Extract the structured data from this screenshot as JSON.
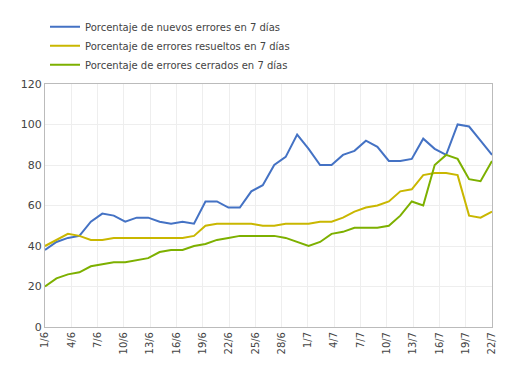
{
  "chart_data": {
    "type": "line",
    "x": [
      0,
      0.435897435897436,
      0.871794871794872,
      1.307692307692308,
      1.743589743589744,
      2.179487179487179,
      2.615384615384615,
      3.051282051282051,
      3.487179487179487,
      3.923076923076923,
      4.358974358974359,
      4.794871794871795,
      5.230769230769231,
      5.666666666666667,
      6.102564102564102,
      6.538461538461538,
      6.974358974358974,
      7.41025641025641,
      7.846153846153846,
      8.282051282051283,
      8.717948717948717,
      9.153846153846153,
      9.58974358974359,
      10.02564102564103,
      10.46153846153846,
      10.8974358974359,
      11.33333333333333,
      11.76923076923077,
      12.20512820512821,
      12.64102564102564,
      13.07692307692308,
      13.51282051282051,
      13.94871794871795,
      14.38461538461538,
      14.82051282051282,
      15.25641025641026,
      15.69230769230769,
      16.12820512820513,
      16.56410256410256,
      17
    ],
    "xlim": [
      0,
      17
    ],
    "xticks": [
      {
        "value": 0,
        "label": "1/6"
      },
      {
        "value": 1,
        "label": "4/6"
      },
      {
        "value": 2,
        "label": "7/6"
      },
      {
        "value": 3,
        "label": "10/6"
      },
      {
        "value": 4,
        "label": "13/6"
      },
      {
        "value": 5,
        "label": "16/6"
      },
      {
        "value": 6,
        "label": "19/6"
      },
      {
        "value": 7,
        "label": "22/6"
      },
      {
        "value": 8,
        "label": "25/6"
      },
      {
        "value": 9,
        "label": "28/6"
      },
      {
        "value": 10,
        "label": "1/7"
      },
      {
        "value": 11,
        "label": "4/7"
      },
      {
        "value": 12,
        "label": "7/7"
      },
      {
        "value": 13,
        "label": "10/7"
      },
      {
        "value": 14,
        "label": "13/7"
      },
      {
        "value": 15,
        "label": "16/7"
      },
      {
        "value": 16,
        "label": "19/7"
      },
      {
        "value": 17,
        "label": "22/7"
      }
    ],
    "ylim": [
      0,
      120
    ],
    "yticks": [
      0,
      20,
      40,
      60,
      80,
      100,
      120
    ],
    "grid": true,
    "legend": "top",
    "series": [
      {
        "name": "Porcentaje de nuevos errores en 7 días",
        "color": "#4472C4",
        "values": [
          38,
          42,
          44,
          45,
          52,
          56,
          55,
          52,
          54,
          54,
          52,
          51,
          52,
          51,
          62,
          62,
          59,
          59,
          67,
          70,
          80,
          84,
          95,
          88,
          80,
          80,
          85,
          87,
          92,
          89,
          82,
          82,
          83,
          93,
          88,
          85,
          100,
          99,
          92,
          85
        ]
      },
      {
        "name": "Porcentaje de errores resueltos en 7 días",
        "color": "#C9B700",
        "values": [
          40,
          43,
          46,
          45,
          43,
          43,
          44,
          44,
          44,
          44,
          44,
          44,
          44,
          45,
          50,
          51,
          51,
          51,
          51,
          50,
          50,
          51,
          51,
          51,
          52,
          52,
          54,
          57,
          59,
          60,
          62,
          67,
          68,
          75,
          76,
          76,
          75,
          55,
          54,
          57
        ]
      },
      {
        "name": "Porcentaje de errores cerrados en 7 días",
        "color": "#7DB000",
        "values": [
          20,
          24,
          26,
          27,
          30,
          31,
          32,
          32,
          33,
          34,
          37,
          38,
          38,
          40,
          41,
          43,
          44,
          45,
          45,
          45,
          45,
          44,
          42,
          40,
          42,
          46,
          47,
          49,
          49,
          49,
          50,
          55,
          62,
          60,
          80,
          85,
          83,
          73,
          72,
          82
        ]
      }
    ]
  }
}
